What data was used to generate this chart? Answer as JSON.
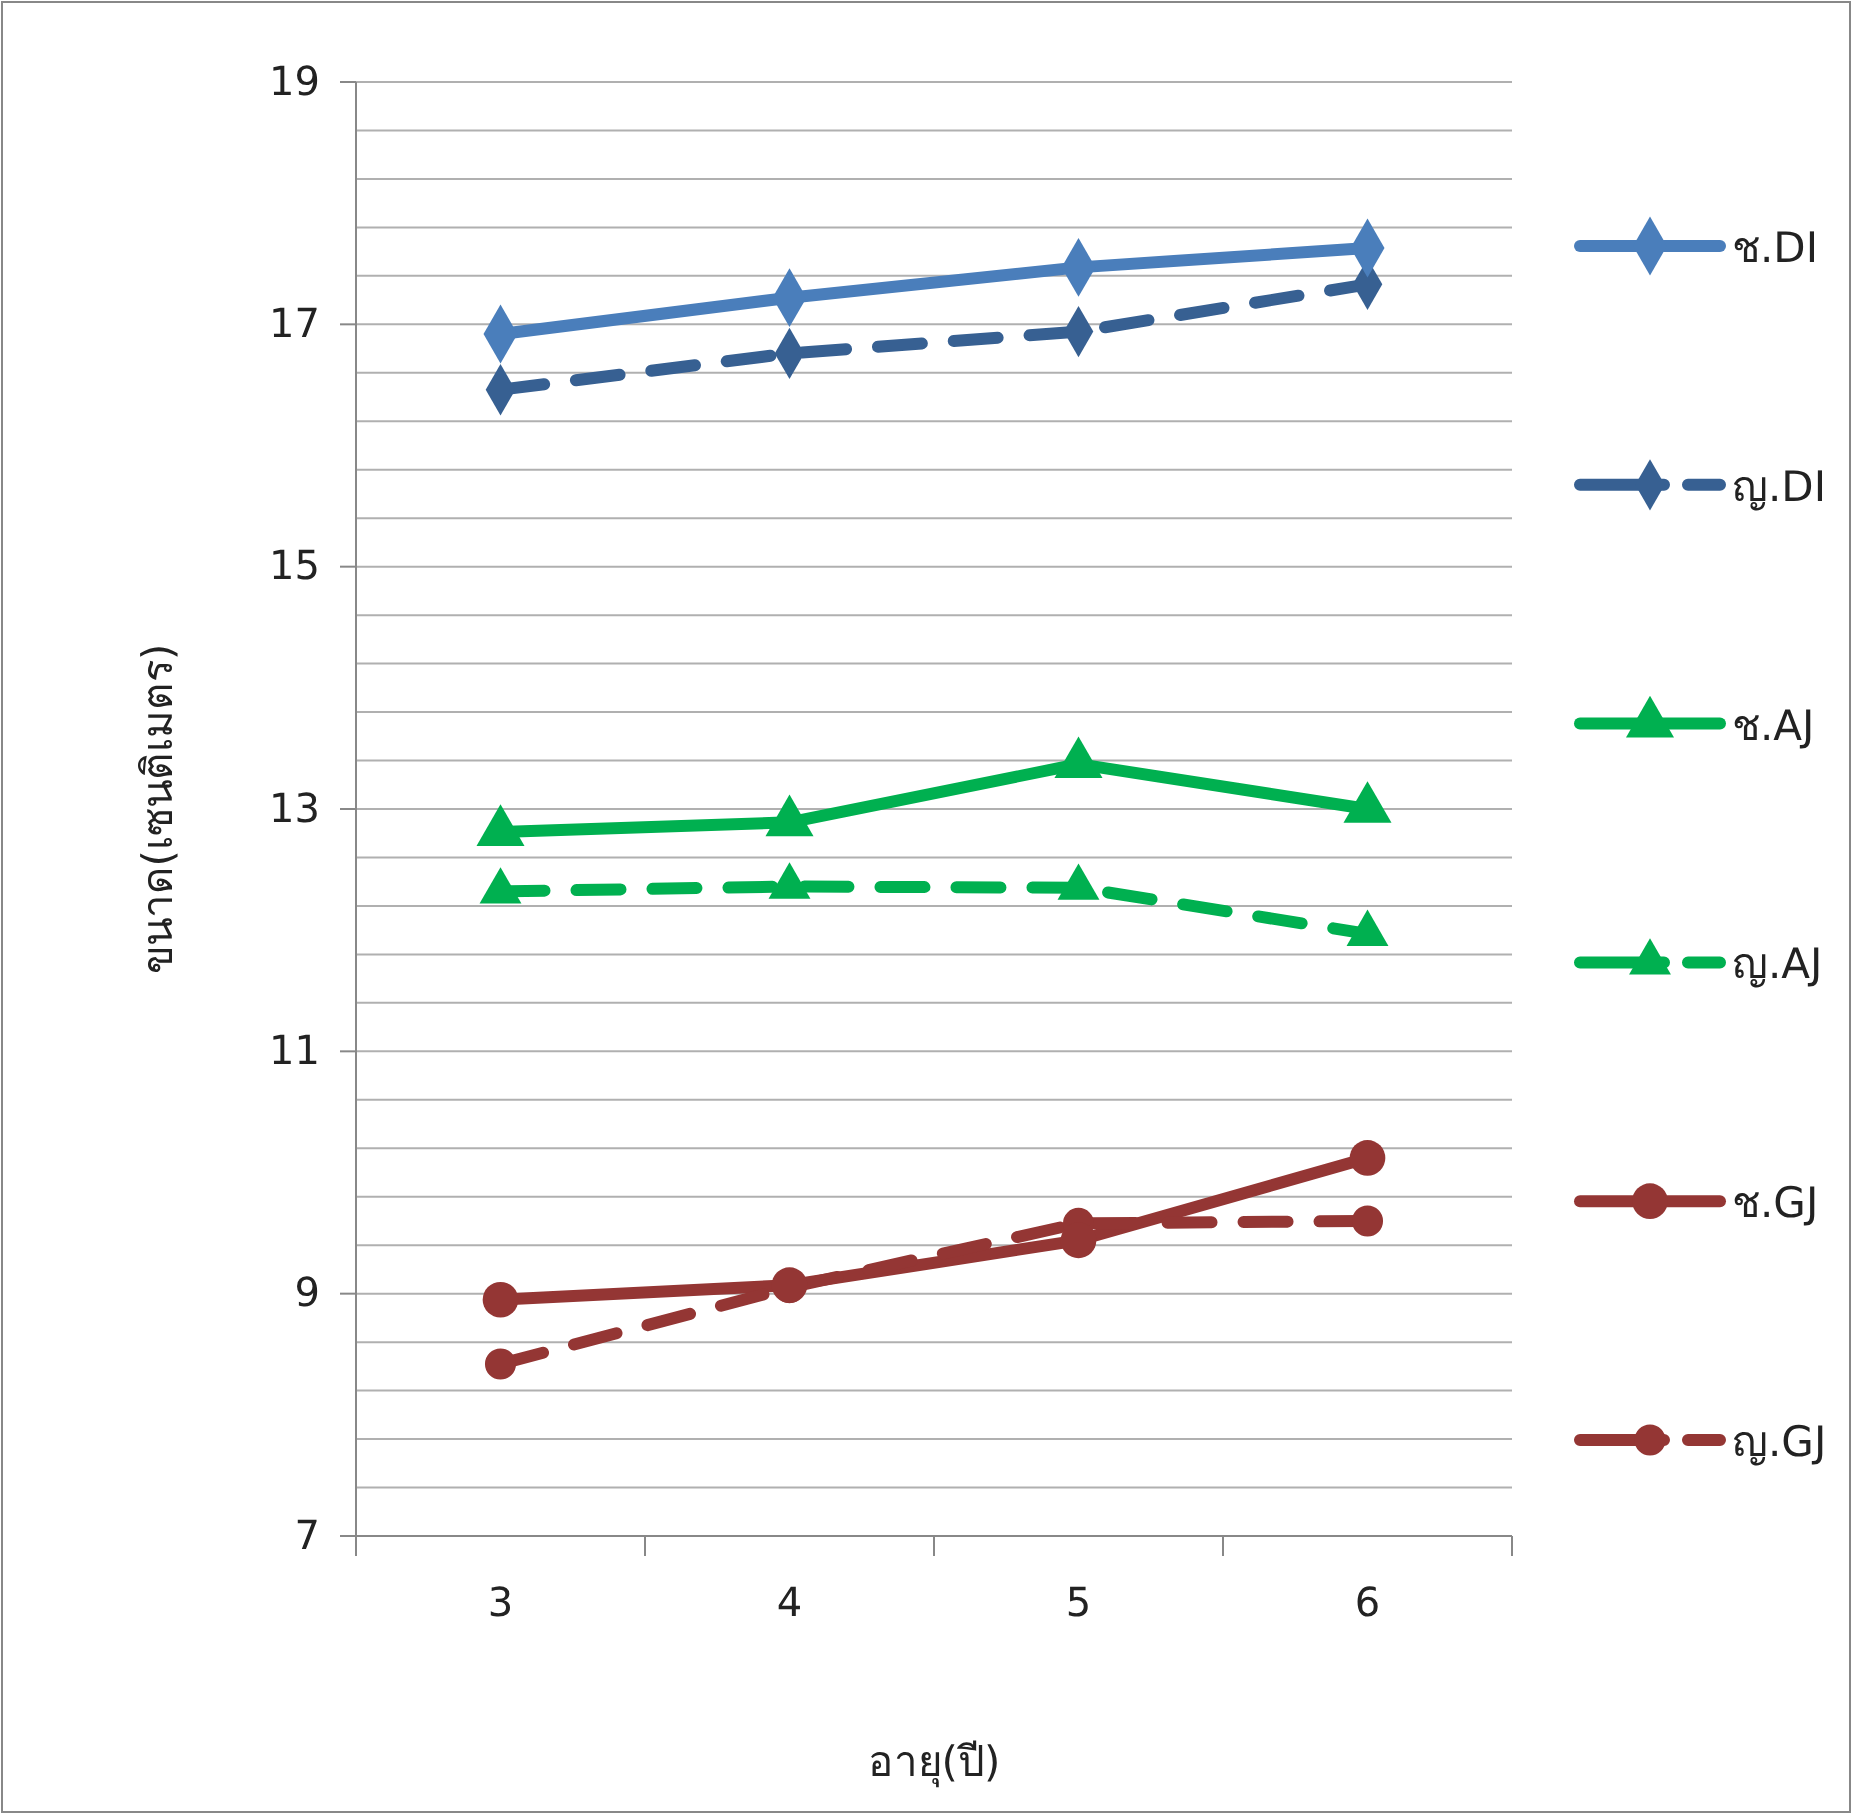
{
  "chart_data": {
    "type": "line",
    "xlabel": "อายุ(ปี)",
    "ylabel": "ขนาด(เซนติเมตร)",
    "categories": [
      "3",
      "4",
      "5",
      "6"
    ],
    "ylim": [
      7,
      19
    ],
    "yticks": [
      7,
      {
        "value": 7.4,
        "label": null
      },
      {
        "value": 7.8,
        "label": null
      },
      {
        "value": 8.2,
        "label": null
      },
      {
        "value": 8.6,
        "label": null
      },
      9,
      {
        "value": 9.4,
        "label": null
      },
      {
        "value": 9.8,
        "label": null
      },
      {
        "value": 10.2,
        "label": null
      },
      {
        "value": 10.6,
        "label": null
      },
      11,
      {
        "value": 11.4,
        "label": null
      },
      {
        "value": 11.8,
        "label": null
      },
      {
        "value": 12.2,
        "label": null
      },
      {
        "value": 12.6,
        "label": null
      },
      13,
      {
        "value": 13.4,
        "label": null
      },
      {
        "value": 13.8,
        "label": null
      },
      {
        "value": 14.2,
        "label": null
      },
      {
        "value": 14.6,
        "label": null
      },
      15,
      {
        "value": 15.4,
        "label": null
      },
      {
        "value": 15.8,
        "label": null
      },
      {
        "value": 16.2,
        "label": null
      },
      {
        "value": 16.6,
        "label": null
      },
      17,
      {
        "value": 17.4,
        "label": null
      },
      {
        "value": 17.8,
        "label": null
      },
      {
        "value": 18.2,
        "label": null
      },
      {
        "value": 18.6,
        "label": null
      },
      19
    ],
    "grid": "y",
    "legend": "right",
    "series": [
      {
        "name": "ช.DI",
        "color": "#4a7ebb",
        "marker": "diamond",
        "line_style": "solid",
        "values": [
          16.92,
          17.22,
          17.47,
          17.63
        ]
      },
      {
        "name": "ญ.DI",
        "color": "#376092",
        "marker": "diamond",
        "line_style": "dashed",
        "values": [
          16.46,
          16.76,
          16.94,
          17.33
        ]
      },
      {
        "name": "ช.AJ",
        "color": "#00b050",
        "marker": "triangle",
        "line_style": "solid",
        "values": [
          12.81,
          12.89,
          13.37,
          13.0
        ]
      },
      {
        "name": "ญ.AJ",
        "color": "#00b050",
        "marker": "triangle",
        "line_style": "dashed",
        "values": [
          12.32,
          12.36,
          12.35,
          11.97
        ]
      },
      {
        "name": "ช.GJ",
        "color": "#943634",
        "marker": "circle",
        "line_style": "solid",
        "values": [
          8.95,
          9.07,
          9.44,
          10.12
        ]
      },
      {
        "name": "ญ.GJ",
        "color": "#943634",
        "marker": "circle",
        "line_style": "dashed",
        "values": [
          8.42,
          9.05,
          9.58,
          9.6
        ]
      }
    ]
  }
}
